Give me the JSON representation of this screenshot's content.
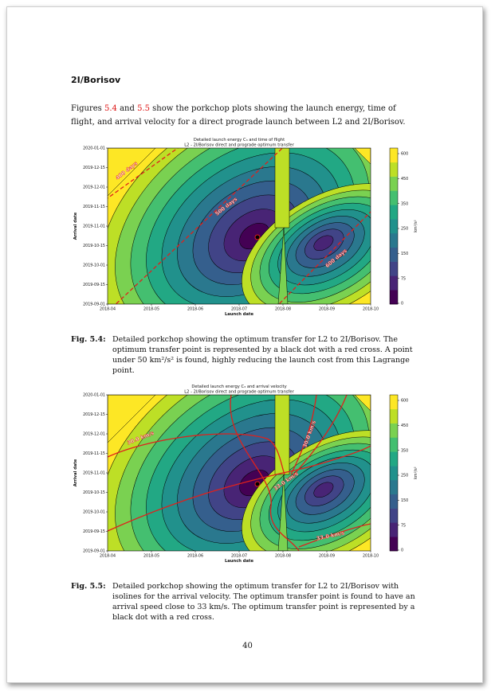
{
  "section_heading": "2I/Borisov",
  "intro": {
    "text_a": "Figures ",
    "ref1": "5.4",
    "text_b": " and ",
    "ref2": "5.5",
    "text_c": " show the porkchop plots showing the launch energy, time of flight, and arrival velocity for a direct prograde launch between L2 and 2I/Borisov."
  },
  "figures": [
    {
      "title_line1": "Detailed launch energy C₃ and time of flight",
      "title_line2": "L2 - 2I/Borisov direct and prograde optimum transfer",
      "x_label": "Launch date",
      "y_label": "Arrival date",
      "colorbar_label": "km²/s²",
      "isoline_kind": "tof",
      "isoline_labels": [
        "400 days",
        "500 days",
        "600 days"
      ],
      "caption_label": "Fig. 5.4:",
      "caption_text": "Detailed porkchop showing the optimum transfer for L2 to 2I/Borisov. The optimum transfer point is represented by a black dot with a red cross. A point under 50 km²/s² is found, highly reducing the launch cost from this Lagrange point."
    },
    {
      "title_line1": "Detailed launch energy C₃ and arrival velocity",
      "title_line2": "L2 - 2I/Borisov direct and prograde optimum transfer",
      "x_label": "Launch date",
      "y_label": "Arrival date",
      "colorbar_label": "km²/s²",
      "isoline_kind": "vinf",
      "isoline_labels": [
        "30.0 km/s",
        "33.0 km/s",
        "30.0 km/s",
        "33.0 km/s"
      ],
      "caption_label": "Fig. 5.5:",
      "caption_text": "Detailed porkchop showing the optimum transfer for L2 to 2I/Borisov with isolines for the arrival velocity. The optimum transfer point is found to have an arrival speed close to 33 km/s. The optimum transfer point is represented by a black dot with a red cross."
    }
  ],
  "chart_data": [
    {
      "type": "heatmap",
      "title": "Detailed launch energy C₃ and time of flight / L2 - 2I/Borisov direct and prograde optimum transfer",
      "xlabel": "Launch date",
      "ylabel": "Arrival date",
      "x_ticks": [
        "2018-04",
        "2018-05",
        "2018-06",
        "2018-07",
        "2018-08",
        "2018-09",
        "2018-10"
      ],
      "y_ticks": [
        "2019-09-01",
        "2019-09-15",
        "2019-10-01",
        "2019-10-15",
        "2019-11-01",
        "2019-11-15",
        "2019-12-01",
        "2019-12-15",
        "2020-01-01"
      ],
      "colorbar_ticks": [
        "0",
        "75",
        "150",
        "250",
        "350",
        "450",
        "600"
      ],
      "colorbar_label": "km²/s²",
      "isolines": [
        "400 days",
        "500 days",
        "600 days"
      ],
      "optimum": {
        "launch": "2018-07-10",
        "arrival": "2019-10-28"
      }
    },
    {
      "type": "heatmap",
      "title": "Detailed launch energy C₃ and arrival velocity / L2 - 2I/Borisov direct and prograde optimum transfer",
      "xlabel": "Launch date",
      "ylabel": "Arrival date",
      "x_ticks": [
        "2018-04",
        "2018-05",
        "2018-06",
        "2018-07",
        "2018-08",
        "2018-09",
        "2018-10"
      ],
      "y_ticks": [
        "2019-09-01",
        "2019-09-15",
        "2019-10-01",
        "2019-10-15",
        "2019-11-01",
        "2019-11-15",
        "2019-12-01",
        "2019-12-15",
        "2020-01-01"
      ],
      "colorbar_ticks": [
        "0",
        "75",
        "150",
        "250",
        "350",
        "450",
        "600"
      ],
      "colorbar_label": "km²/s²",
      "isolines": [
        "30.0 km/s",
        "33.0 km/s"
      ],
      "optimum": {
        "launch": "2018-07-10",
        "arrival": "2019-10-28"
      }
    }
  ],
  "page_number": "40"
}
